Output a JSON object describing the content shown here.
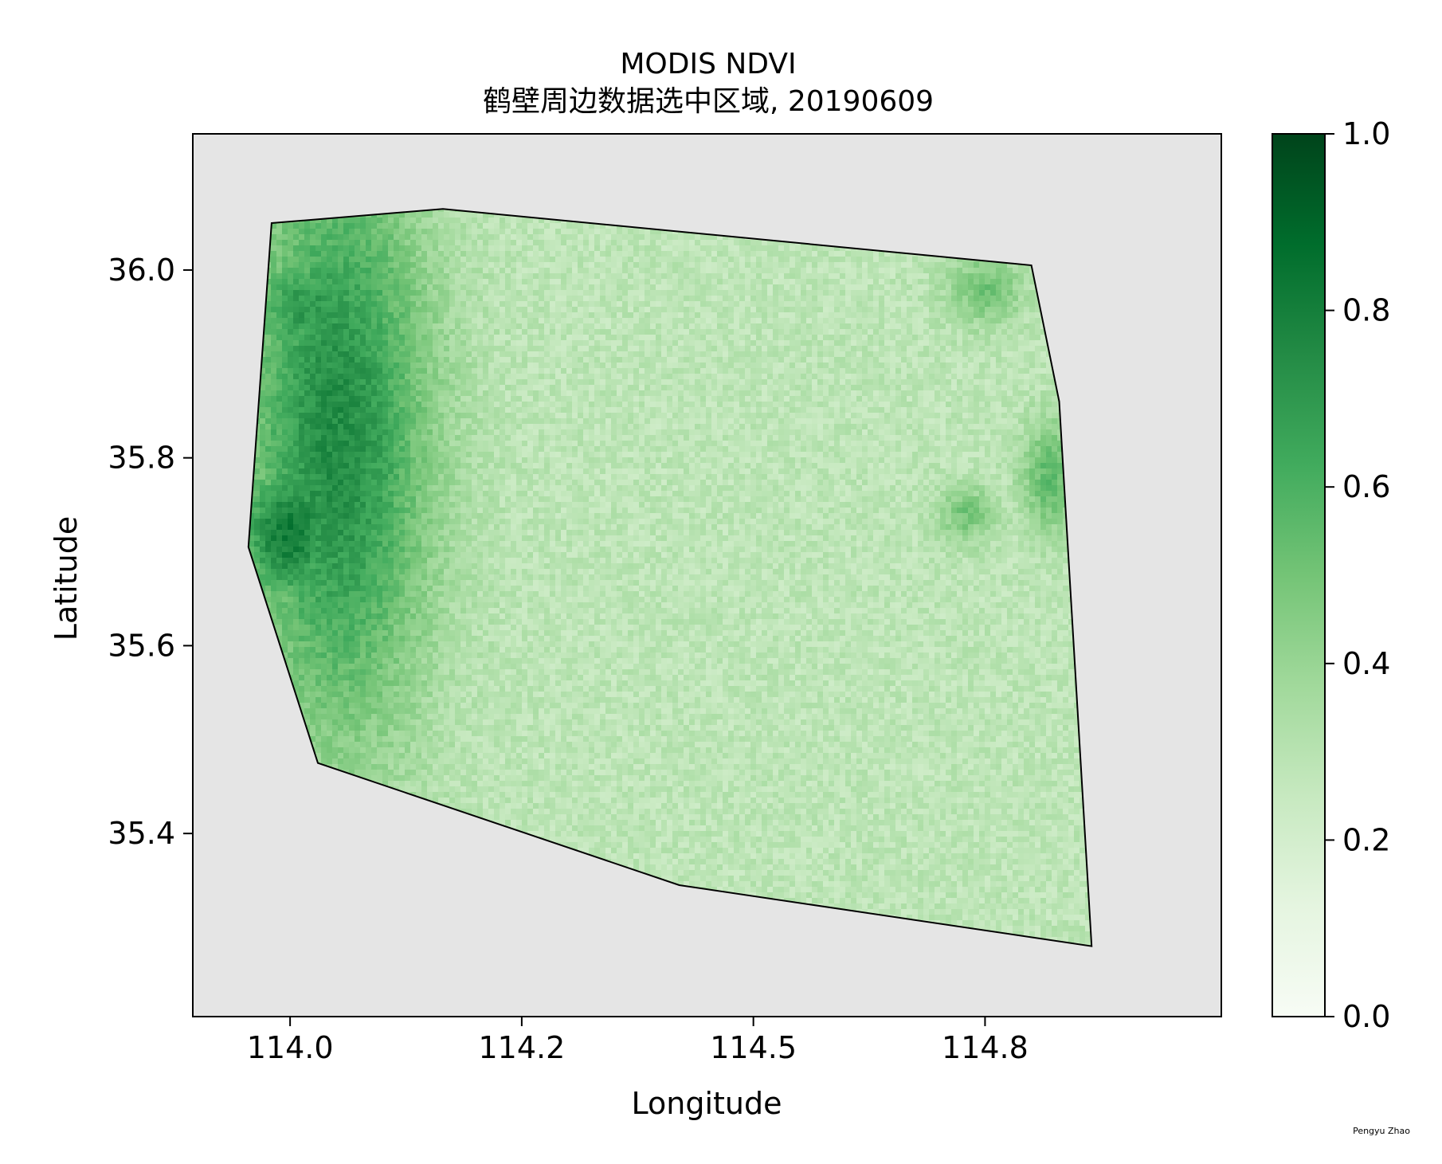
{
  "chart_data": {
    "type": "heatmap",
    "title": "MODIS NDVI",
    "subtitle": "鹤壁周边数据选中区域, 20190609",
    "xlabel": "Longitude",
    "ylabel": "Latitude",
    "xlim": [
      113.895,
      115.005
    ],
    "ylim": [
      35.205,
      36.145
    ],
    "xticks": [
      {
        "value": 114.0,
        "label": "114.0"
      },
      {
        "value": 114.25,
        "label": "114.2"
      },
      {
        "value": 114.5,
        "label": "114.5"
      },
      {
        "value": 114.75,
        "label": "114.8"
      }
    ],
    "yticks": [
      {
        "value": 35.4,
        "label": "35.4"
      },
      {
        "value": 35.6,
        "label": "35.6"
      },
      {
        "value": 35.8,
        "label": "35.8"
      },
      {
        "value": 36.0,
        "label": "36.0"
      }
    ],
    "colormap": "Greens",
    "colorbar": {
      "range": [
        0.0,
        1.0
      ],
      "ticks": [
        "0.0",
        "0.2",
        "0.4",
        "0.6",
        "0.8",
        "1.0"
      ]
    },
    "background_color": "#e5e5e5",
    "region_boundary_lonlat": [
      [
        113.98,
        36.05
      ],
      [
        114.165,
        36.065
      ],
      [
        114.8,
        36.005
      ],
      [
        114.83,
        35.86
      ],
      [
        114.865,
        35.28
      ],
      [
        114.42,
        35.345
      ],
      [
        114.03,
        35.475
      ],
      [
        113.955,
        35.705
      ]
    ],
    "vegetation_hotspots": [
      {
        "lon": 114.05,
        "lat": 35.82,
        "ndvi": 0.75,
        "extent_lon": 0.1,
        "extent_lat": 0.32
      },
      {
        "lon": 114.0,
        "lat": 35.72,
        "ndvi": 0.82,
        "extent_lon": 0.06,
        "extent_lat": 0.08
      },
      {
        "lon": 114.02,
        "lat": 35.96,
        "ndvi": 0.7,
        "extent_lon": 0.07,
        "extent_lat": 0.07
      },
      {
        "lon": 114.75,
        "lat": 35.98,
        "ndvi": 0.5,
        "extent_lon": 0.04,
        "extent_lat": 0.04
      },
      {
        "lon": 114.73,
        "lat": 35.74,
        "ndvi": 0.5,
        "extent_lon": 0.03,
        "extent_lat": 0.03
      },
      {
        "lon": 114.82,
        "lat": 35.78,
        "ndvi": 0.55,
        "extent_lon": 0.03,
        "extent_lat": 0.06
      }
    ],
    "base_ndvi": 0.28
  },
  "credit": "Pengyu Zhao"
}
